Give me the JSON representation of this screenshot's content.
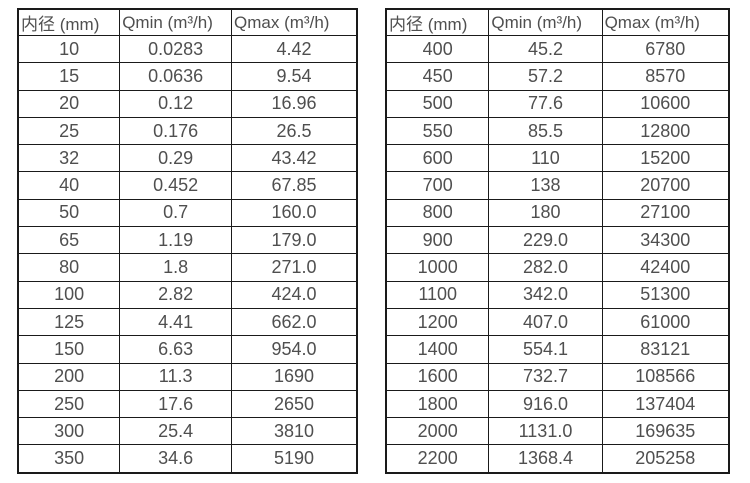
{
  "page": {
    "background_color": "#ffffff",
    "text_color": "#4f4f4f",
    "border_color": "#1a1a1a"
  },
  "tables": [
    {
      "name": "flow-range-table-dn10-350",
      "headers": [
        "内径 (mm)",
        "Qmin (m³/h)",
        "Qmax (m³/h)"
      ],
      "rows": [
        [
          "10",
          "0.0283",
          "4.42"
        ],
        [
          "15",
          "0.0636",
          "9.54"
        ],
        [
          "20",
          "0.12",
          "16.96"
        ],
        [
          "25",
          "0.176",
          "26.5"
        ],
        [
          "32",
          "0.29",
          "43.42"
        ],
        [
          "40",
          "0.452",
          "67.85"
        ],
        [
          "50",
          "0.7",
          "160.0"
        ],
        [
          "65",
          "1.19",
          "179.0"
        ],
        [
          "80",
          "1.8",
          "271.0"
        ],
        [
          "100",
          "2.82",
          "424.0"
        ],
        [
          "125",
          "4.41",
          "662.0"
        ],
        [
          "150",
          "6.63",
          "954.0"
        ],
        [
          "200",
          "11.3",
          "1690"
        ],
        [
          "250",
          "17.6",
          "2650"
        ],
        [
          "300",
          "25.4",
          "3810"
        ],
        [
          "350",
          "34.6",
          "5190"
        ]
      ]
    },
    {
      "name": "flow-range-table-dn400-2200",
      "headers": [
        "内径 (mm)",
        "Qmin (m³/h)",
        "Qmax (m³/h)"
      ],
      "rows": [
        [
          "400",
          "45.2",
          "6780"
        ],
        [
          "450",
          "57.2",
          "8570"
        ],
        [
          "500",
          "77.6",
          "10600"
        ],
        [
          "550",
          "85.5",
          "12800"
        ],
        [
          "600",
          "110",
          "15200"
        ],
        [
          "700",
          "138",
          "20700"
        ],
        [
          "800",
          "180",
          "27100"
        ],
        [
          "900",
          "229.0",
          "34300"
        ],
        [
          "1000",
          "282.0",
          "42400"
        ],
        [
          "1100",
          "342.0",
          "51300"
        ],
        [
          "1200",
          "407.0",
          "61000"
        ],
        [
          "1400",
          "554.1",
          "83121"
        ],
        [
          "1600",
          "732.7",
          "108566"
        ],
        [
          "1800",
          "916.0",
          "137404"
        ],
        [
          "2000",
          "1131.0",
          "169635"
        ],
        [
          "2200",
          "1368.4",
          "205258"
        ]
      ]
    }
  ]
}
